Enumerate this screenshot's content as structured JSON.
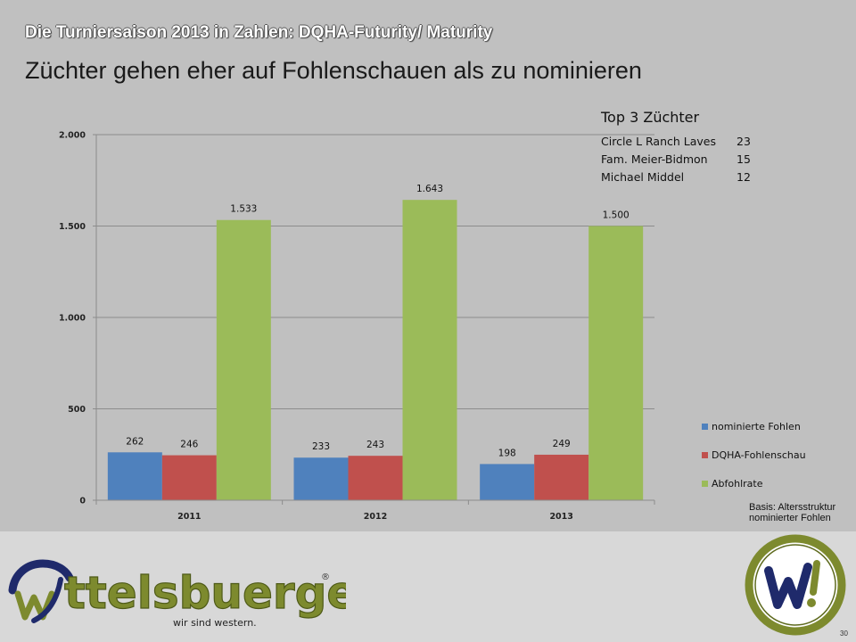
{
  "slide": {
    "supertitle": "Die Turniersaison 2013 in Zahlen: DQHA-Futurity/  Maturity",
    "headline": "Züchter gehen eher auf Fohlenschauen als zu nominieren",
    "basis_line1": "Basis:  Altersstruktur",
    "basis_line2": "nominierter Fohlen",
    "page_number": "30"
  },
  "top3": {
    "title": "Top 3 Züchter",
    "rows": [
      {
        "name": "Circle L Ranch Laves",
        "count": "23"
      },
      {
        "name": "Fam. Meier-Bidmon",
        "count": "15"
      },
      {
        "name": "Michael Middel",
        "count": "12"
      }
    ]
  },
  "logo": {
    "wordmark": "ttelsbuerger",
    "tagline": "wir sind western.",
    "registered": "®",
    "colors": {
      "navy": "#1f2a6b",
      "olive": "#7d8a2e"
    }
  },
  "chart_data": {
    "type": "bar",
    "categories": [
      "2011",
      "2012",
      "2013"
    ],
    "series": [
      {
        "name": "nominierte Fohlen",
        "values": [
          262,
          233,
          198
        ],
        "labels": [
          "262",
          "233",
          "198"
        ],
        "color": "#4f81bd"
      },
      {
        "name": "DQHA-Fohlenschau",
        "values": [
          246,
          243,
          249
        ],
        "labels": [
          "246",
          "243",
          "249"
        ],
        "color": "#c0504d"
      },
      {
        "name": "Abfohlrate",
        "values": [
          1533,
          1643,
          1500
        ],
        "labels": [
          "1.533",
          "1.643",
          "1.500"
        ],
        "color": "#9bbb59"
      }
    ],
    "yticks": [
      {
        "value": 0,
        "label": "0"
      },
      {
        "value": 500,
        "label": "500"
      },
      {
        "value": 1000,
        "label": "1.000"
      },
      {
        "value": 1500,
        "label": "1.500"
      },
      {
        "value": 2000,
        "label": "2.000"
      }
    ],
    "ylim": [
      0,
      2000
    ],
    "grid": true,
    "legend": "right"
  }
}
